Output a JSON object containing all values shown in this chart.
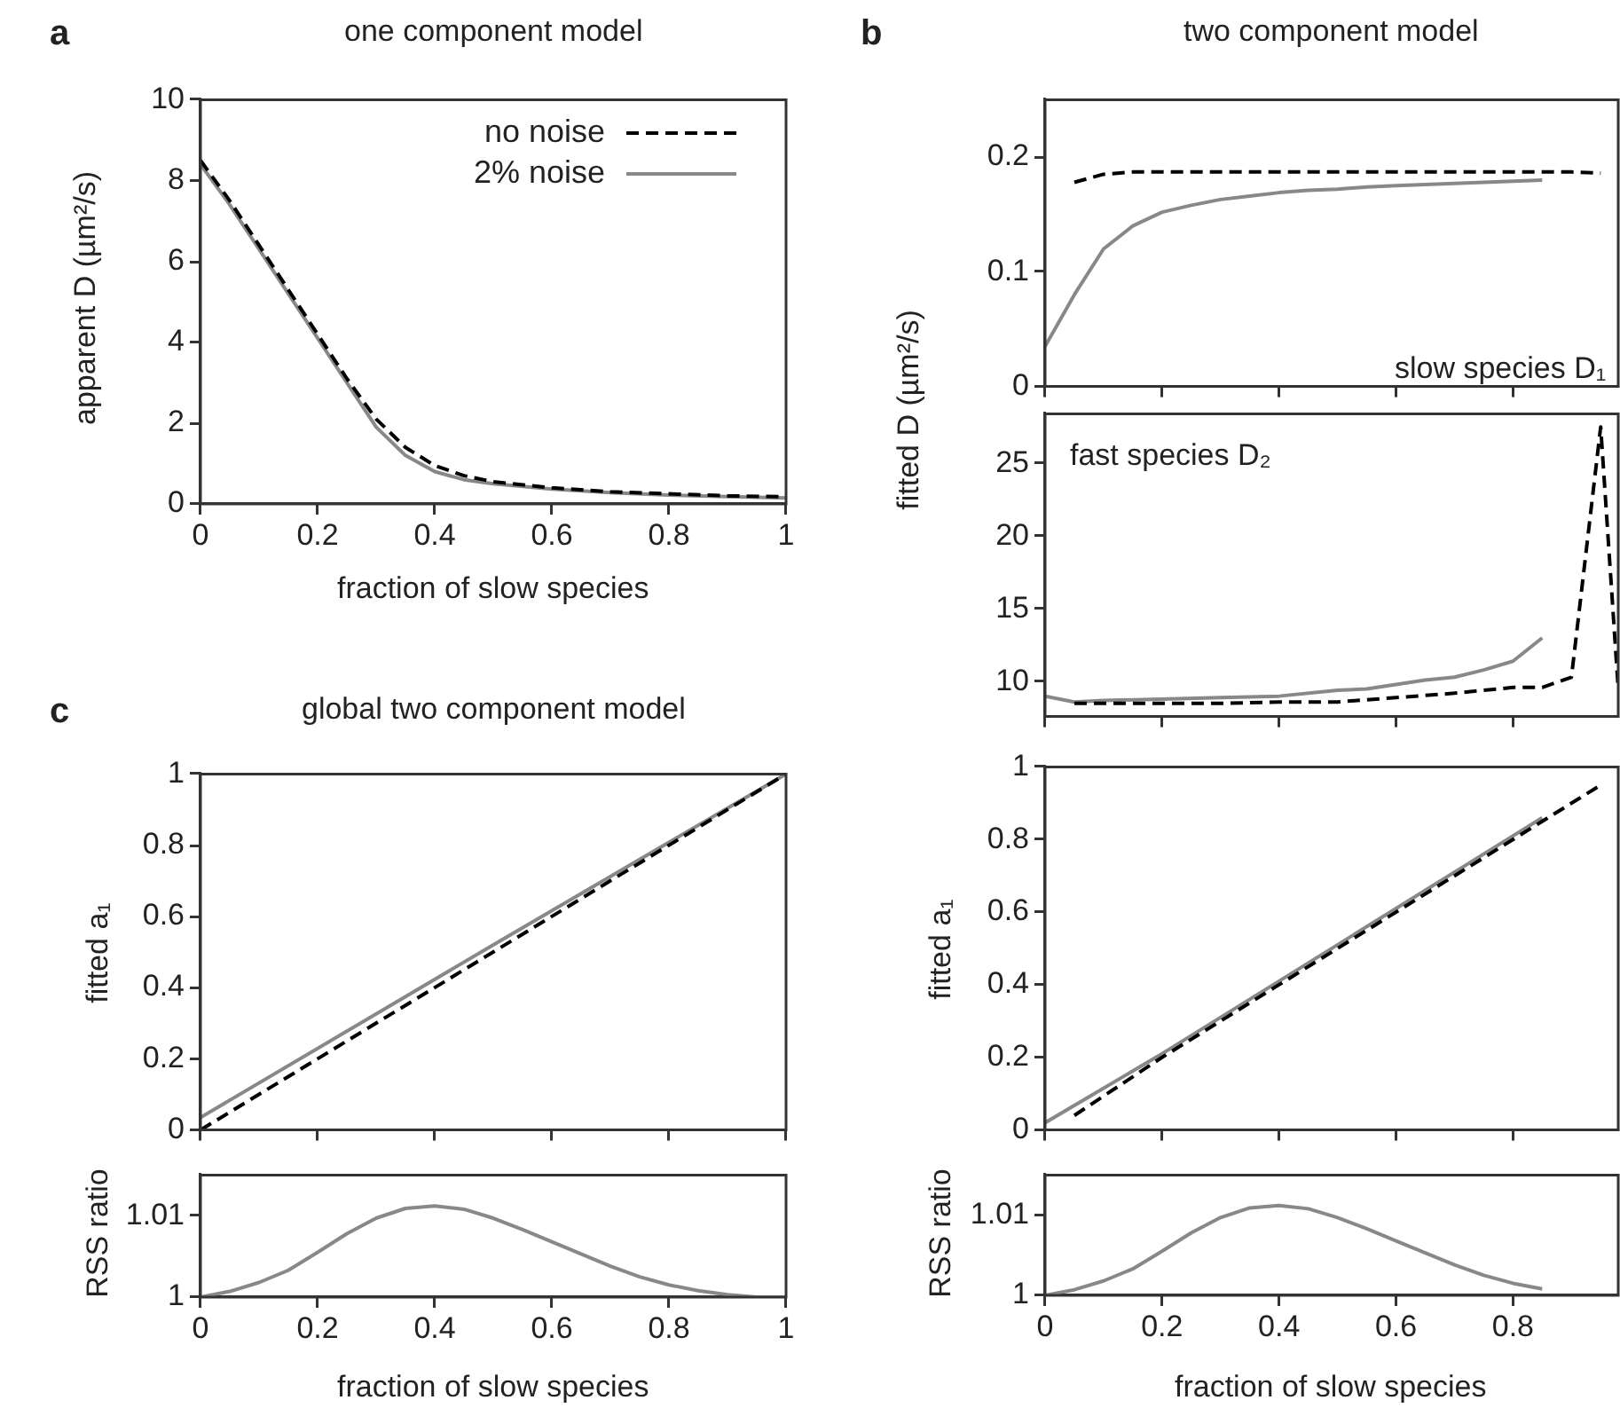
{
  "chart_data": [
    {
      "type": "line",
      "title": "one component model",
      "annotations": [
        "a"
      ],
      "xlabel": "fraction of slow species",
      "ylabel": "apparent D (µm²/s)",
      "xlim": [
        0,
        1
      ],
      "xticks": [
        0,
        0.2,
        0.4,
        0.6,
        0.8,
        1
      ],
      "ylim": [
        0,
        10
      ],
      "yticks": [
        0,
        2,
        4,
        6,
        8,
        10
      ],
      "legend": "top right",
      "series": [
        {
          "name": "no noise",
          "color": "#000000",
          "line_style": "dashed",
          "x": [
            0,
            0.05,
            0.1,
            0.15,
            0.2,
            0.25,
            0.3,
            0.35,
            0.4,
            0.45,
            0.5,
            0.6,
            0.7,
            0.8,
            0.9,
            1
          ],
          "values": [
            8.5,
            7.5,
            6.4,
            5.3,
            4.2,
            3.1,
            2.1,
            1.4,
            0.95,
            0.7,
            0.55,
            0.4,
            0.3,
            0.25,
            0.2,
            0.18
          ]
        },
        {
          "name": "2% noise",
          "color": "#888888",
          "line_style": "solid",
          "x": [
            0,
            0.05,
            0.1,
            0.15,
            0.2,
            0.25,
            0.3,
            0.35,
            0.4,
            0.45,
            0.5,
            0.6,
            0.7,
            0.8,
            0.9,
            1
          ],
          "values": [
            8.4,
            7.4,
            6.3,
            5.2,
            4.1,
            3.0,
            1.9,
            1.2,
            0.8,
            0.6,
            0.5,
            0.37,
            0.28,
            0.22,
            0.18,
            0.15
          ]
        }
      ]
    },
    {
      "type": "line",
      "title": "two component model",
      "annotations": [
        "b",
        "slow species D₁"
      ],
      "ylabel": "fitted D (µm²/s)",
      "xlim": [
        0,
        0.98
      ],
      "xticks": [
        0,
        0.2,
        0.4,
        0.6,
        0.8
      ],
      "ylim": [
        0,
        0.25
      ],
      "yticks": [
        0,
        0.1,
        0.2
      ],
      "tick_labels": "y",
      "series": [
        {
          "color": "#000000",
          "line_style": "dashed",
          "x": [
            0.05,
            0.1,
            0.15,
            0.2,
            0.3,
            0.4,
            0.5,
            0.6,
            0.7,
            0.8,
            0.9,
            0.95
          ],
          "values": [
            0.178,
            0.185,
            0.187,
            0.187,
            0.187,
            0.187,
            0.187,
            0.187,
            0.187,
            0.187,
            0.187,
            0.186
          ]
        },
        {
          "color": "#888888",
          "line_style": "solid",
          "x": [
            0,
            0.05,
            0.1,
            0.15,
            0.2,
            0.25,
            0.3,
            0.35,
            0.4,
            0.45,
            0.5,
            0.55,
            0.6,
            0.65,
            0.7,
            0.75,
            0.8,
            0.85
          ],
          "values": [
            0.035,
            0.08,
            0.12,
            0.14,
            0.152,
            0.158,
            0.163,
            0.166,
            0.169,
            0.171,
            0.172,
            0.174,
            0.175,
            0.176,
            0.177,
            0.178,
            0.179,
            0.18
          ]
        }
      ]
    },
    {
      "type": "line",
      "annotations": [
        "fast species D₂"
      ],
      "xlim": [
        0,
        0.98
      ],
      "xticks": [
        0,
        0.2,
        0.4,
        0.6,
        0.8
      ],
      "ylim": [
        7.6,
        28.4
      ],
      "yticks": [
        10,
        15,
        20,
        25
      ],
      "tick_labels": "y",
      "series": [
        {
          "color": "#000000",
          "line_style": "dashed",
          "x": [
            0.05,
            0.1,
            0.2,
            0.3,
            0.4,
            0.5,
            0.6,
            0.7,
            0.8,
            0.85,
            0.9,
            0.95,
            0.98
          ],
          "values": [
            8.5,
            8.5,
            8.5,
            8.5,
            8.6,
            8.6,
            8.9,
            9.2,
            9.6,
            9.6,
            10.3,
            27.5,
            9.5
          ]
        },
        {
          "color": "#888888",
          "line_style": "solid",
          "x": [
            0,
            0.05,
            0.1,
            0.2,
            0.3,
            0.4,
            0.5,
            0.55,
            0.6,
            0.65,
            0.7,
            0.75,
            0.8,
            0.85
          ],
          "values": [
            9.0,
            8.6,
            8.7,
            8.8,
            8.9,
            9.0,
            9.4,
            9.5,
            9.8,
            10.1,
            10.3,
            10.8,
            11.4,
            13.0
          ]
        }
      ]
    },
    {
      "type": "line",
      "ylabel": "fitted a₁",
      "xlim": [
        0,
        0.98
      ],
      "xticks": [
        0,
        0.2,
        0.4,
        0.6,
        0.8
      ],
      "ylim": [
        0,
        1
      ],
      "yticks": [
        0,
        0.2,
        0.4,
        0.6,
        0.8,
        1
      ],
      "tick_labels": "y",
      "series": [
        {
          "color": "#000000",
          "line_style": "dashed",
          "x": [
            0.05,
            0.2,
            0.4,
            0.6,
            0.8,
            0.85,
            0.9,
            0.95
          ],
          "values": [
            0.04,
            0.2,
            0.4,
            0.6,
            0.8,
            0.85,
            0.9,
            0.95
          ]
        },
        {
          "color": "#888888",
          "line_style": "solid",
          "x": [
            0,
            0.2,
            0.4,
            0.6,
            0.8,
            0.85
          ],
          "values": [
            0.02,
            0.21,
            0.41,
            0.61,
            0.81,
            0.86
          ]
        }
      ]
    },
    {
      "type": "line",
      "xlabel": "fraction of slow species",
      "ylabel": "RSS ratio",
      "xlim": [
        0,
        0.98
      ],
      "xticks": [
        0,
        0.2,
        0.4,
        0.6,
        0.8
      ],
      "ylim": [
        1,
        1.015
      ],
      "yticks": [
        1,
        1.01
      ],
      "series": [
        {
          "color": "#888888",
          "line_style": "solid",
          "x": [
            0,
            0.05,
            0.1,
            0.15,
            0.2,
            0.25,
            0.3,
            0.35,
            0.4,
            0.45,
            0.5,
            0.55,
            0.6,
            0.65,
            0.7,
            0.75,
            0.8,
            0.85
          ],
          "values": [
            1.0,
            1.0007,
            1.0018,
            1.0033,
            1.0055,
            1.0078,
            1.0097,
            1.0109,
            1.0112,
            1.0108,
            1.0097,
            1.0083,
            1.0068,
            1.0053,
            1.0038,
            1.0025,
            1.0015,
            1.0008
          ]
        }
      ]
    },
    {
      "type": "line",
      "title": "global two component model",
      "annotations": [
        "c"
      ],
      "ylabel": "fitted a₁",
      "xlim": [
        0,
        1
      ],
      "xticks": [
        0,
        0.2,
        0.4,
        0.6,
        0.8,
        1
      ],
      "ylim": [
        0,
        1
      ],
      "yticks": [
        0,
        0.2,
        0.4,
        0.6,
        0.8,
        1
      ],
      "tick_labels": "y",
      "series": [
        {
          "color": "#000000",
          "line_style": "dashed",
          "x": [
            0,
            0.5,
            1
          ],
          "values": [
            0,
            0.5,
            1
          ]
        },
        {
          "color": "#888888",
          "line_style": "solid",
          "x": [
            0,
            0.5,
            1
          ],
          "values": [
            0.035,
            0.52,
            1
          ]
        }
      ]
    },
    {
      "type": "line",
      "xlabel": "fraction of slow species",
      "ylabel": "RSS ratio",
      "xlim": [
        0,
        1
      ],
      "xticks": [
        0,
        0.2,
        0.4,
        0.6,
        0.8,
        1
      ],
      "ylim": [
        1,
        1.015
      ],
      "yticks": [
        1,
        1.01
      ],
      "series": [
        {
          "color": "#888888",
          "line_style": "solid",
          "x": [
            0,
            0.05,
            0.1,
            0.15,
            0.2,
            0.25,
            0.3,
            0.35,
            0.4,
            0.45,
            0.5,
            0.55,
            0.6,
            0.65,
            0.7,
            0.75,
            0.8,
            0.85,
            0.9,
            0.95,
            1
          ],
          "values": [
            1.0,
            1.0007,
            1.0018,
            1.0033,
            1.0055,
            1.0078,
            1.0097,
            1.0109,
            1.0112,
            1.0108,
            1.0097,
            1.0083,
            1.0068,
            1.0053,
            1.0038,
            1.0025,
            1.0015,
            1.0008,
            1.0003,
            1.0,
            1.0
          ]
        }
      ]
    }
  ]
}
